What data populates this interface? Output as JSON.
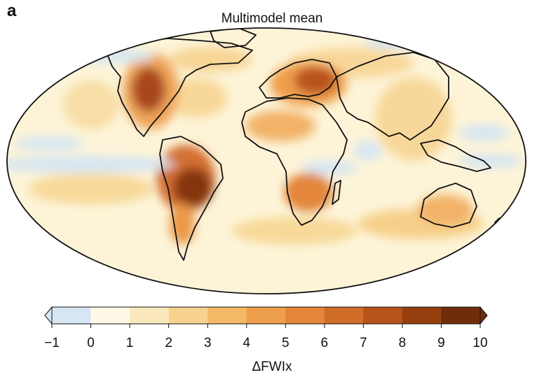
{
  "panel": {
    "letter": "a",
    "title": "Multimodel mean"
  },
  "colorbar": {
    "label": "ΔFWIx",
    "ticks": [
      "−1",
      "0",
      "1",
      "2",
      "3",
      "4",
      "5",
      "6",
      "7",
      "8",
      "9",
      "10"
    ],
    "bins": [
      {
        "from": -1,
        "to": 0,
        "color": "#d6e6f2"
      },
      {
        "from": 0,
        "to": 1,
        "color": "#fdf9e6"
      },
      {
        "from": 1,
        "to": 2,
        "color": "#fbe9bd"
      },
      {
        "from": 2,
        "to": 3,
        "color": "#f8d38f"
      },
      {
        "from": 3,
        "to": 4,
        "color": "#f4b866"
      },
      {
        "from": 4,
        "to": 5,
        "color": "#ee9f4b"
      },
      {
        "from": 5,
        "to": 6,
        "color": "#e3863a"
      },
      {
        "from": 6,
        "to": 7,
        "color": "#d06b28"
      },
      {
        "from": 7,
        "to": 8,
        "color": "#b8531a"
      },
      {
        "from": 8,
        "to": 9,
        "color": "#96400f"
      },
      {
        "from": 9,
        "to": 10,
        "color": "#6f2d0a"
      }
    ],
    "extend": "both"
  }
}
